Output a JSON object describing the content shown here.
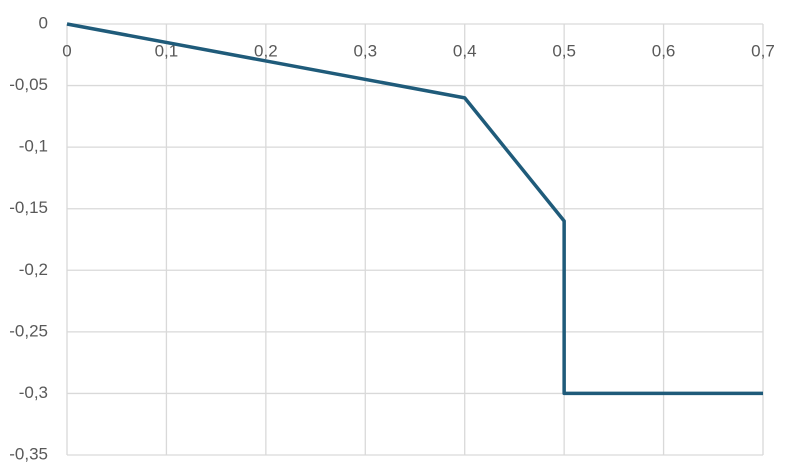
{
  "chart_data": {
    "type": "line",
    "x": [
      0,
      0.4,
      0.5,
      0.5,
      0.7
    ],
    "values": [
      0,
      -0.06,
      -0.16,
      -0.3,
      -0.3
    ],
    "color": "#1f5b7a",
    "xlim": [
      0,
      0.7
    ],
    "xticks": [
      0,
      {
        "value": 0.1,
        "label": "0,1"
      },
      {
        "value": 0.2,
        "label": "0,2"
      },
      {
        "value": 0.3,
        "label": "0,3"
      },
      {
        "value": 0.4,
        "label": "0,4"
      },
      {
        "value": 0.5,
        "label": "0,5"
      },
      {
        "value": 0.6,
        "label": "0,6"
      },
      {
        "value": 0.7,
        "label": "0,7"
      }
    ],
    "ylim": [
      -0.35,
      0
    ],
    "yticks": [
      0,
      {
        "value": -0.05,
        "label": "-0,05"
      },
      {
        "value": -0.1,
        "label": "-0,1"
      },
      {
        "value": -0.15,
        "label": "-0,15"
      },
      {
        "value": -0.2,
        "label": "-0,2"
      },
      {
        "value": -0.25,
        "label": "-0,25"
      },
      {
        "value": -0.3,
        "label": "-0,3"
      },
      {
        "value": -0.35,
        "label": "-0,35"
      }
    ],
    "grid": true
  }
}
